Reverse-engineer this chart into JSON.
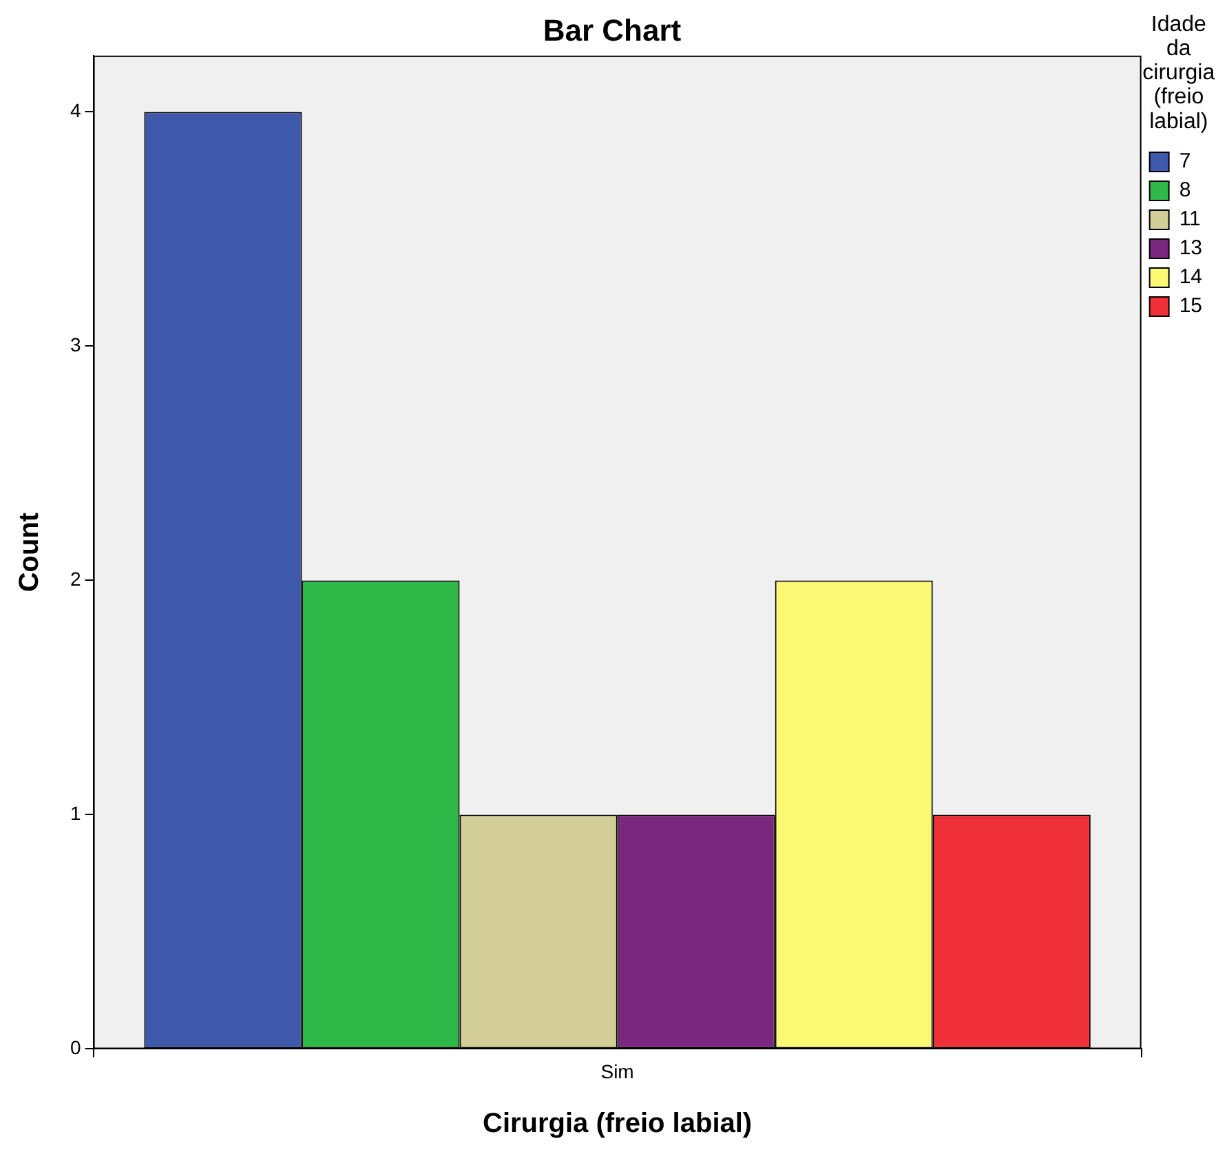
{
  "chart_data": {
    "type": "bar",
    "title": "Bar Chart",
    "xlabel": "Cirurgia (freio labial)",
    "ylabel": "Count",
    "legend_title": "Idade da cirurgia (freio labial)",
    "categories": [
      "Sim"
    ],
    "series": [
      {
        "name": "7",
        "color": "#3e58ac",
        "values": [
          4
        ]
      },
      {
        "name": "8",
        "color": "#2eb848",
        "values": [
          2
        ]
      },
      {
        "name": "11",
        "color": "#d3ce97",
        "values": [
          1
        ]
      },
      {
        "name": "13",
        "color": "#7a287f",
        "values": [
          1
        ]
      },
      {
        "name": "14",
        "color": "#fbf873",
        "values": [
          2
        ]
      },
      {
        "name": "15",
        "color": "#f03038",
        "values": [
          1
        ]
      }
    ],
    "ylim": [
      0,
      4.24
    ],
    "yticks": [
      0,
      1,
      2,
      3,
      4
    ],
    "grid": false,
    "legend": "top right"
  }
}
